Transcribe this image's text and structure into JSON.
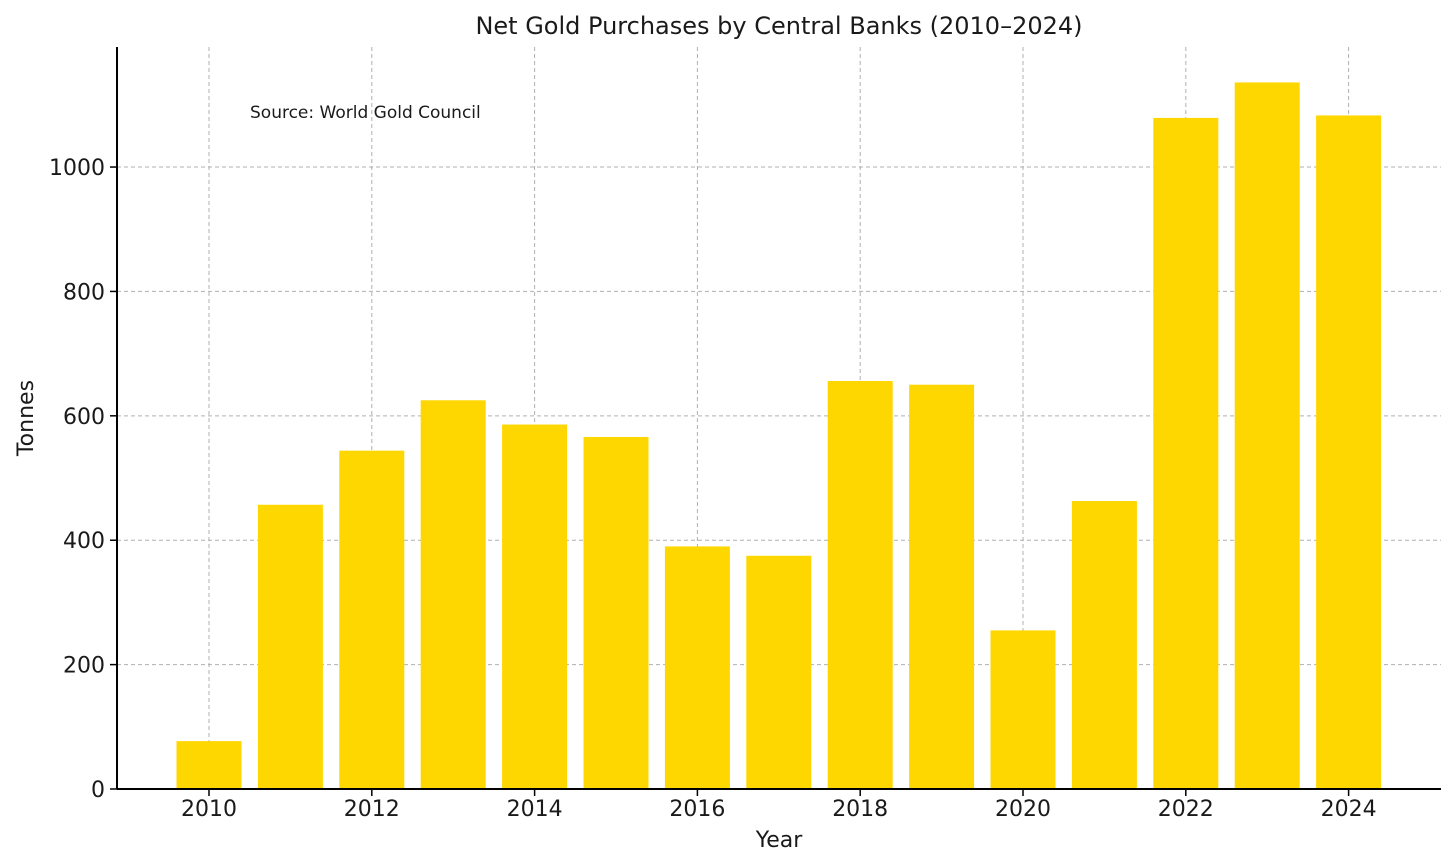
{
  "chart_data": {
    "type": "bar",
    "title": "Net Gold Purchases by Central Banks (2010–2024)",
    "annotation": "Source: World Gold Council",
    "xlabel": "Year",
    "ylabel": "Tonnes",
    "categories": [
      2010,
      2011,
      2012,
      2013,
      2014,
      2015,
      2016,
      2017,
      2018,
      2019,
      2020,
      2021,
      2022,
      2023,
      2024
    ],
    "values": [
      77,
      457,
      544,
      625,
      586,
      566,
      390,
      375,
      656,
      650,
      255,
      463,
      1079,
      1136,
      1083
    ],
    "x_ticks": [
      "2010",
      "2012",
      "2014",
      "2016",
      "2018",
      "2020",
      "2022",
      "2024"
    ],
    "y_ticks": [
      "0",
      "200",
      "400",
      "600",
      "800",
      "1000"
    ],
    "ylim": [
      0,
      1193
    ],
    "grid": true,
    "bar_color": "#FFD700",
    "grid_color": "#b0b0b0"
  }
}
